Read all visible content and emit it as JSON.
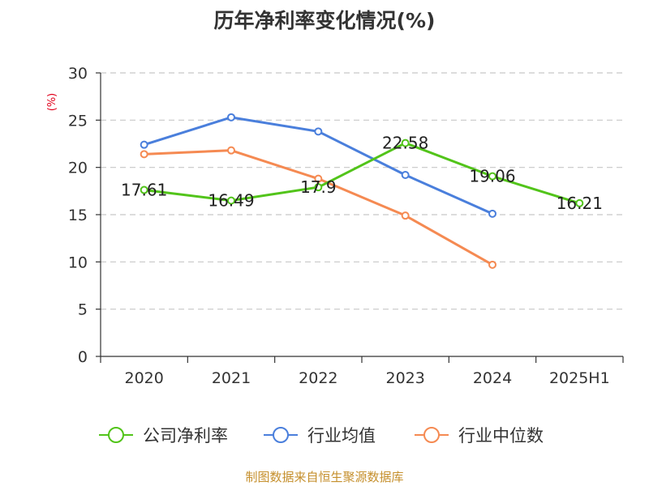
{
  "chart_data": {
    "type": "line",
    "title": "历年净利率变化情况(%)",
    "ylabel": "(%)",
    "xlabel": "",
    "categories": [
      "2020",
      "2021",
      "2022",
      "2023",
      "2024",
      "2025H1"
    ],
    "ylim": [
      0,
      30
    ],
    "yticks": [
      0,
      5,
      10,
      15,
      20,
      25,
      30
    ],
    "grid": "horizontal-dashed",
    "legend_position": "bottom",
    "series": [
      {
        "name": "公司净利率",
        "color": "#52c41a",
        "values": [
          17.61,
          16.49,
          17.9,
          22.58,
          19.06,
          16.21
        ],
        "labels": [
          "17.61",
          "16.49",
          "17.9",
          "22.58",
          "19.06",
          "16.21"
        ]
      },
      {
        "name": "行业均值",
        "color": "#4a7fdc",
        "values": [
          22.4,
          25.3,
          23.8,
          19.2,
          15.1,
          null
        ]
      },
      {
        "name": "行业中位数",
        "color": "#f58a52",
        "values": [
          21.4,
          21.8,
          18.8,
          14.9,
          9.7,
          null
        ]
      }
    ]
  },
  "footer": {
    "source": "制图数据来自恒生聚源数据库"
  }
}
